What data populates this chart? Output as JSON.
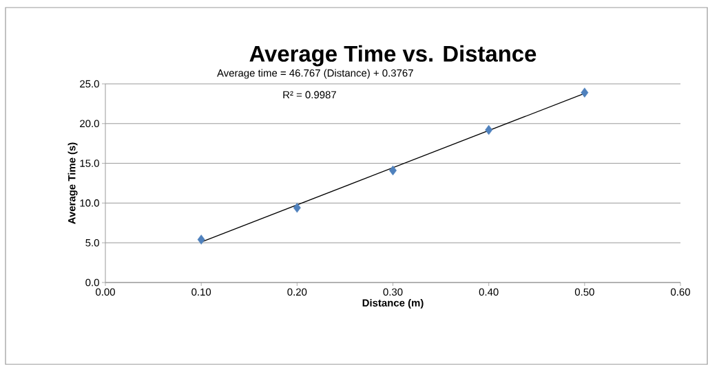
{
  "chart_data": {
    "type": "scatter",
    "title": "Average Time vs. Distance",
    "xlabel": "Distance (m)",
    "ylabel": "Average Time (s)",
    "x": [
      0.1,
      0.2,
      0.3,
      0.4,
      0.5
    ],
    "series": [
      {
        "color": "#4f81bd",
        "marker": "diamond",
        "values": [
          5.4,
          9.4,
          14.1,
          19.2,
          23.9
        ]
      },
      {
        "type": "line",
        "color": "#000000",
        "marker": "none",
        "line_style": "solid",
        "x": [
          0.1,
          0.5
        ],
        "values": [
          5.1,
          23.8
        ]
      }
    ],
    "xlim": [
      0,
      0.6
    ],
    "ylim": [
      0,
      25
    ],
    "xticks": [
      {
        "value": 0,
        "label": "0.00"
      },
      {
        "value": 0.1,
        "label": "0.10"
      },
      {
        "value": 0.2,
        "label": "0.20"
      },
      {
        "value": 0.3,
        "label": "0.30"
      },
      {
        "value": 0.4,
        "label": "0.40"
      },
      {
        "value": 0.5,
        "label": "0.50"
      },
      {
        "value": 0.6,
        "label": "0.60"
      }
    ],
    "yticks": [
      {
        "value": 0,
        "label": "0.0"
      },
      {
        "value": 5,
        "label": "5.0"
      },
      {
        "value": 10,
        "label": "10.0"
      },
      {
        "value": 15,
        "label": "15.0"
      },
      {
        "value": 20,
        "label": "20.0"
      },
      {
        "value": 25,
        "label": "25.0"
      }
    ],
    "grid": "y",
    "annotations": [
      "Average time = 46.767 (Distance) + 0.3767",
      "R² = 0.9987"
    ]
  }
}
